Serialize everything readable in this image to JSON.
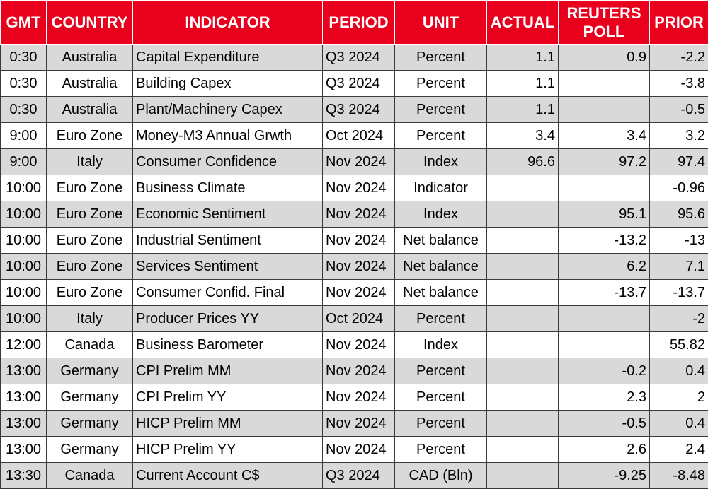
{
  "headers": {
    "gmt": "GMT",
    "country": "COUNTRY",
    "indicator": "INDICATOR",
    "period": "PERIOD",
    "unit": "UNIT",
    "actual": "ACTUAL",
    "poll_line1": "REUTERS",
    "poll_line2": "POLL",
    "prior": "PRIOR"
  },
  "colors": {
    "header_bg": "#e8001c",
    "header_text": "#ffffff",
    "row_shade": "#d9d9d9",
    "row_plain": "#ffffff"
  },
  "rows": [
    {
      "gmt": "0:30",
      "country": "Australia",
      "indicator": "Capital Expenditure",
      "period": "Q3 2024",
      "unit": "Percent",
      "actual": "1.1",
      "poll": "0.9",
      "prior": "-2.2"
    },
    {
      "gmt": "0:30",
      "country": "Australia",
      "indicator": "Building Capex",
      "period": "Q3 2024",
      "unit": "Percent",
      "actual": "1.1",
      "poll": "",
      "prior": "-3.8"
    },
    {
      "gmt": "0:30",
      "country": "Australia",
      "indicator": "Plant/Machinery Capex",
      "period": "Q3 2024",
      "unit": "Percent",
      "actual": "1.1",
      "poll": "",
      "prior": "-0.5"
    },
    {
      "gmt": "9:00",
      "country": "Euro Zone",
      "indicator": "Money-M3 Annual Grwth",
      "period": "Oct 2024",
      "unit": "Percent",
      "actual": "3.4",
      "poll": "3.4",
      "prior": "3.2"
    },
    {
      "gmt": "9:00",
      "country": "Italy",
      "indicator": "Consumer Confidence",
      "period": "Nov 2024",
      "unit": "Index",
      "actual": "96.6",
      "poll": "97.2",
      "prior": "97.4"
    },
    {
      "gmt": "10:00",
      "country": "Euro Zone",
      "indicator": "Business Climate",
      "period": "Nov 2024",
      "unit": "Indicator",
      "actual": "",
      "poll": "",
      "prior": "-0.96"
    },
    {
      "gmt": "10:00",
      "country": "Euro Zone",
      "indicator": "Economic Sentiment",
      "period": "Nov 2024",
      "unit": "Index",
      "actual": "",
      "poll": "95.1",
      "prior": "95.6"
    },
    {
      "gmt": "10:00",
      "country": "Euro Zone",
      "indicator": "Industrial Sentiment",
      "period": "Nov 2024",
      "unit": "Net balance",
      "actual": "",
      "poll": "-13.2",
      "prior": "-13"
    },
    {
      "gmt": "10:00",
      "country": "Euro Zone",
      "indicator": "Services Sentiment",
      "period": "Nov 2024",
      "unit": "Net balance",
      "actual": "",
      "poll": "6.2",
      "prior": "7.1"
    },
    {
      "gmt": "10:00",
      "country": "Euro Zone",
      "indicator": "Consumer Confid. Final",
      "period": "Nov 2024",
      "unit": "Net balance",
      "actual": "",
      "poll": "-13.7",
      "prior": "-13.7"
    },
    {
      "gmt": "10:00",
      "country": "Italy",
      "indicator": "Producer Prices YY",
      "period": "Oct 2024",
      "unit": "Percent",
      "actual": "",
      "poll": "",
      "prior": "-2"
    },
    {
      "gmt": "12:00",
      "country": "Canada",
      "indicator": "Business Barometer",
      "period": "Nov 2024",
      "unit": "Index",
      "actual": "",
      "poll": "",
      "prior": "55.82"
    },
    {
      "gmt": "13:00",
      "country": "Germany",
      "indicator": "CPI Prelim MM",
      "period": "Nov 2024",
      "unit": "Percent",
      "actual": "",
      "poll": "-0.2",
      "prior": "0.4"
    },
    {
      "gmt": "13:00",
      "country": "Germany",
      "indicator": "CPI Prelim YY",
      "period": "Nov 2024",
      "unit": "Percent",
      "actual": "",
      "poll": "2.3",
      "prior": "2"
    },
    {
      "gmt": "13:00",
      "country": "Germany",
      "indicator": "HICP Prelim MM",
      "period": "Nov 2024",
      "unit": "Percent",
      "actual": "",
      "poll": "-0.5",
      "prior": "0.4"
    },
    {
      "gmt": "13:00",
      "country": "Germany",
      "indicator": "HICP Prelim YY",
      "period": "Nov 2024",
      "unit": "Percent",
      "actual": "",
      "poll": "2.6",
      "prior": "2.4"
    },
    {
      "gmt": "13:30",
      "country": "Canada",
      "indicator": "Current Account C$",
      "period": "Q3 2024",
      "unit": "CAD (Bln)",
      "actual": "",
      "poll": "-9.25",
      "prior": "-8.48"
    }
  ]
}
